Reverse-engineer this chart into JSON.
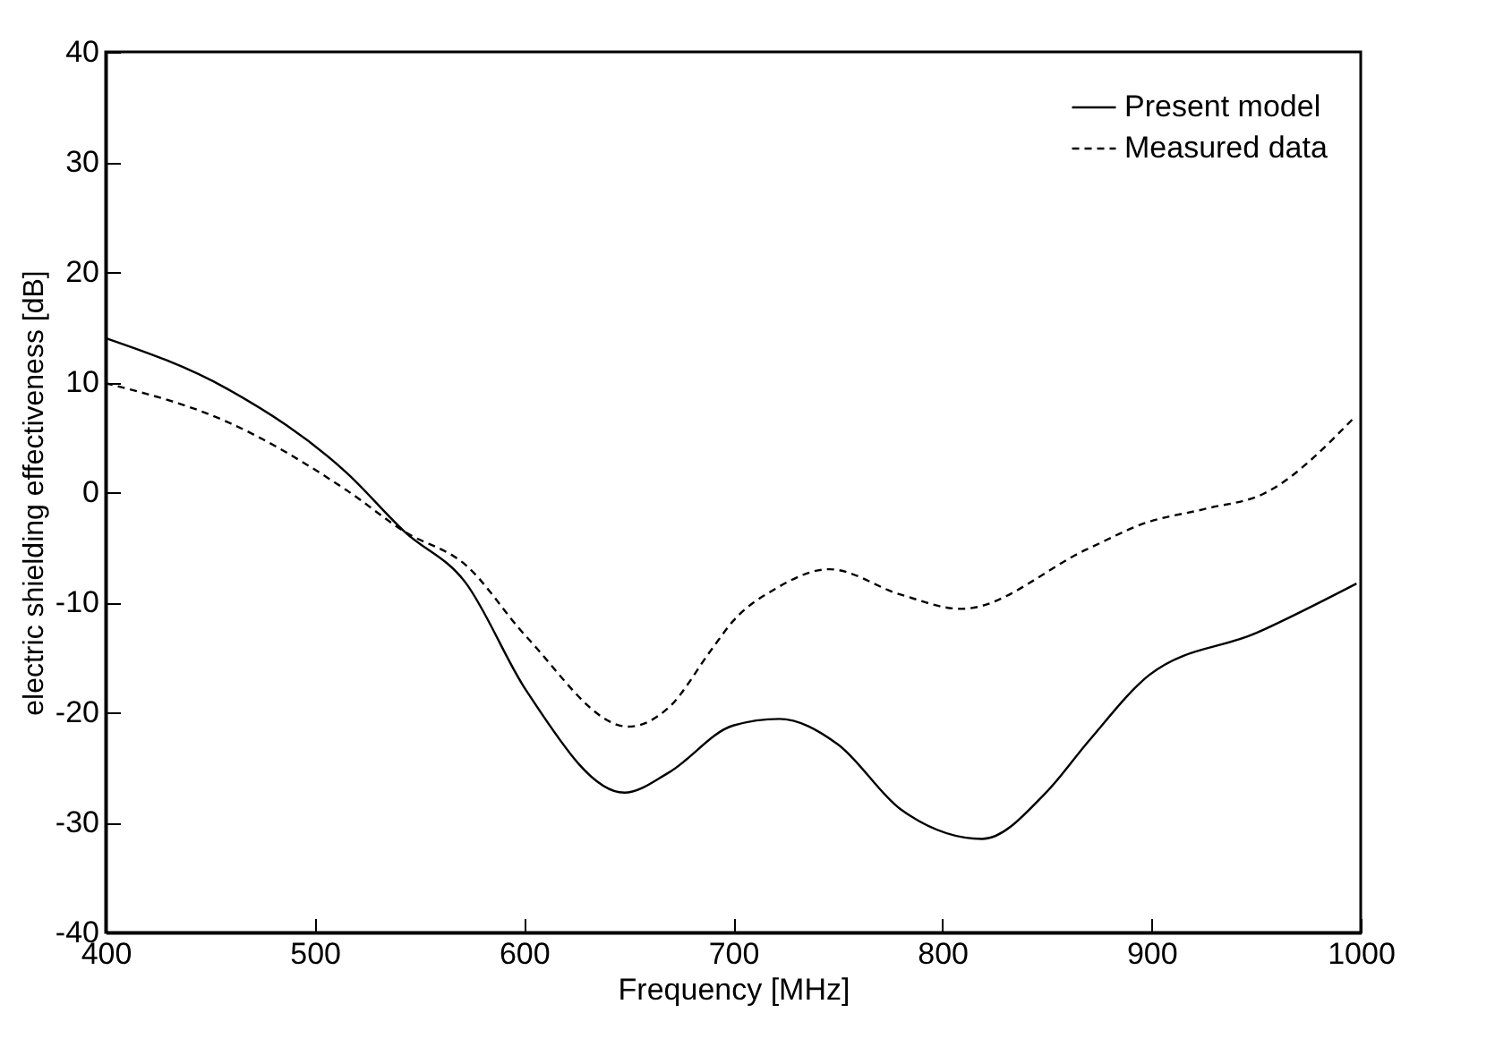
{
  "chart_data": {
    "type": "line",
    "xlabel": "Frequency [MHz]",
    "ylabel": "electric shielding effectiveness [dB]",
    "xlim": [
      400,
      1000
    ],
    "xticks": [
      400,
      500,
      600,
      700,
      800,
      900,
      1000
    ],
    "ylim": [
      -40,
      40
    ],
    "yticks": [
      -40,
      -30,
      -20,
      -10,
      0,
      10,
      20,
      30,
      40
    ],
    "legend": "top right",
    "marker": "none",
    "series": [
      {
        "name": "Present model",
        "color": "#000000",
        "line_style": "solid",
        "x": [
          400,
          458,
          515,
          543,
          572,
          601,
          648,
          669,
          700,
          722,
          750,
          780,
          819,
          850,
          870,
          899,
          950,
          998
        ],
        "values": [
          14.0,
          9.4,
          1.8,
          -3.6,
          -8.2,
          -18,
          -27.3,
          -25.5,
          -21.2,
          -20.6,
          -22.9,
          -28.8,
          -31.5,
          -27.2,
          -22.6,
          -16.6,
          -12.8,
          -8.3
        ]
      },
      {
        "name": "Measured data",
        "color": "#000000",
        "line_style": "dashed",
        "x": [
          400,
          458,
          515,
          543,
          572,
          601,
          650,
          669,
          690,
          700,
          720,
          746,
          780,
          809,
          869,
          897,
          926,
          954,
          997
        ],
        "values": [
          9.9,
          6.4,
          0.2,
          -3.6,
          -6.6,
          -13.1,
          -21.3,
          -19.6,
          -14.2,
          -11.7,
          -8.8,
          -7.0,
          -9.3,
          -10.6,
          -5.2,
          -2.8,
          -1.5,
          -0.1,
          6.8
        ]
      }
    ]
  }
}
